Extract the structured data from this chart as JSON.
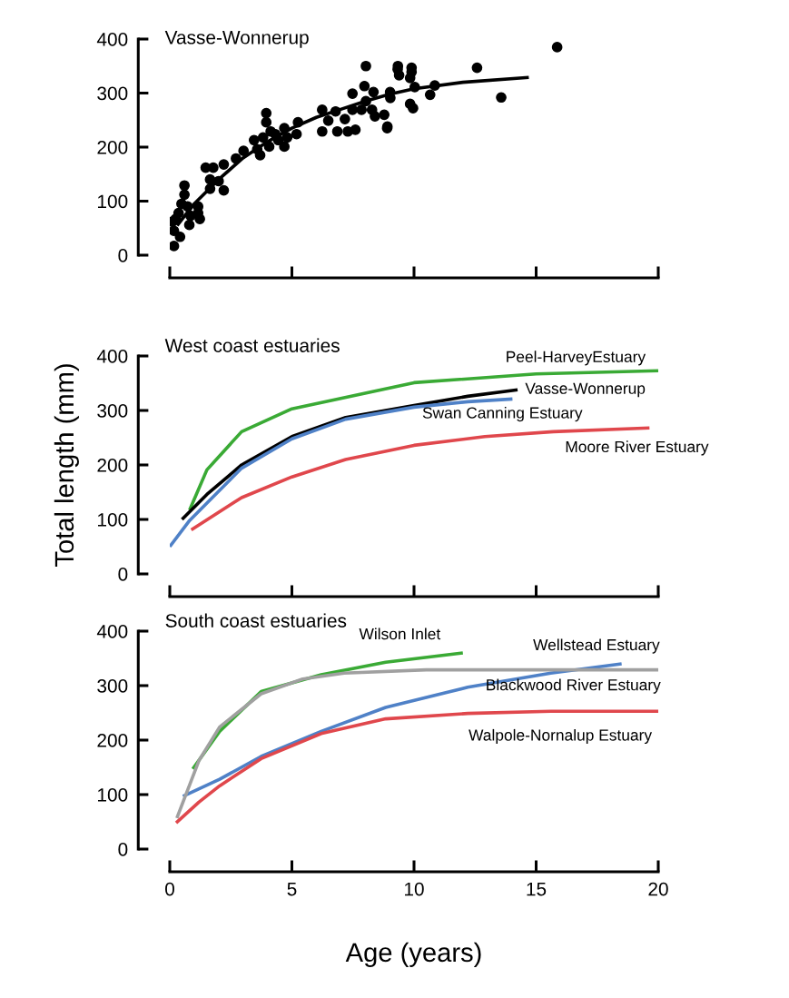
{
  "chart_data": [
    {
      "type": "scatter",
      "title": "Vasse-Wonnerup",
      "xlim": [
        0,
        20
      ],
      "xticks": [
        0,
        5,
        10,
        15,
        20
      ],
      "ylim": [
        0,
        400
      ],
      "yticks": [
        0,
        100,
        200,
        300,
        400
      ],
      "tick_labels": "y",
      "grid": false,
      "legend": false,
      "series": [
        {
          "type": "scatter",
          "color": "#000000",
          "marker": "circle",
          "x": [
            0.17,
            0.17,
            0.24,
            0.36,
            0.6,
            0.6,
            0.48,
            0.73,
            0.8,
            0.42,
            0.11,
            0.85,
            1.16,
            1.23,
            1.16,
            1.47,
            1.78,
            1.65,
            1.65,
            2.0,
            2.21,
            2.21,
            2.71,
            3.02,
            3.45,
            3.58,
            3.7,
            3.82,
            3.95,
            3.95,
            4.07,
            4.13,
            4.32,
            4.44,
            4.69,
            4.69,
            4.81,
            5.25,
            5.19,
            6.24,
            6.24,
            6.49,
            6.79,
            6.86,
            7.17,
            7.29,
            7.48,
            7.48,
            7.6,
            7.85,
            7.97,
            8.03,
            8.03,
            8.28,
            8.34,
            8.4,
            8.78,
            8.9,
            9.02,
            9.33,
            9.39,
            8.91,
            9.03,
            9.34,
            9.9,
            9.9,
            9.84,
            10.03,
            9.84,
            9.96,
            10.66,
            10.85,
            12.58,
            13.57,
            15.86
          ],
          "values": [
            17,
            45,
            67,
            78,
            129,
            112,
            95,
            90,
            56,
            34,
            62,
            73,
            90,
            67,
            78,
            162,
            162,
            140,
            123,
            137,
            168,
            120,
            179,
            193,
            213,
            196,
            185,
            218,
            263,
            246,
            201,
            229,
            224,
            213,
            235,
            201,
            218,
            246,
            224,
            269,
            229,
            249,
            266,
            229,
            252,
            229,
            299,
            269,
            232,
            269,
            313,
            350,
            285,
            269,
            302,
            257,
            260,
            235,
            302,
            344,
            333,
            238,
            291,
            350,
            347,
            339,
            328,
            311,
            280,
            272,
            297,
            314,
            347,
            292,
            385
          ]
        },
        {
          "type": "line",
          "color": "#000000",
          "line_style": "solid",
          "x": [
            0.3,
            1,
            2,
            3,
            4,
            5,
            6,
            7,
            8,
            9,
            10,
            12,
            14.7
          ],
          "values": [
            55,
            95,
            140,
            180,
            210,
            235,
            255,
            270,
            285,
            298,
            308,
            320,
            329
          ]
        }
      ]
    },
    {
      "type": "line",
      "title": "West coast estuaries",
      "ylabel": "Total length (mm)",
      "xlim": [
        0,
        20
      ],
      "xticks": [
        0,
        5,
        10,
        15,
        20
      ],
      "ylim": [
        0,
        400
      ],
      "yticks": [
        0,
        100,
        200,
        300,
        400
      ],
      "tick_labels": "y",
      "grid": false,
      "legend": false,
      "line_style": "solid",
      "series": [
        {
          "name": "Peel-HarveyEstuary",
          "color": "#3aaa35",
          "x": [
            0.81,
            1.52,
            2.94,
            5,
            10,
            15,
            20
          ],
          "values": [
            117,
            191,
            261,
            303,
            351,
            367,
            373
          ]
        },
        {
          "name": "Vasse-Wonnerup",
          "color": "#000000",
          "x": [
            0.5,
            1.52,
            2.94,
            5,
            7.2,
            10,
            12.2,
            14.24
          ],
          "values": [
            100,
            146,
            200,
            252,
            287,
            309,
            326,
            338
          ]
        },
        {
          "name": "Swan Canning Estuary",
          "color": "#4f81c7",
          "x": [
            0,
            0.81,
            1.52,
            2.94,
            5,
            7.2,
            10,
            12.2,
            14.03
          ],
          "values": [
            50,
            98,
            130,
            194,
            248,
            284,
            306,
            316,
            321
          ]
        },
        {
          "name": "Moore River Estuary",
          "color": "#e0474c",
          "x": [
            0.88,
            2.94,
            5,
            7.2,
            10,
            12.9,
            15.7,
            19.64
          ],
          "values": [
            81,
            140,
            178,
            210,
            236,
            252,
            261,
            268
          ]
        }
      ]
    },
    {
      "type": "line",
      "title": "South coast estuaries",
      "xlabel": "Age (years)",
      "xlim": [
        0,
        20
      ],
      "xticks": [
        0,
        5,
        10,
        15,
        20
      ],
      "ylim": [
        0,
        400
      ],
      "yticks": [
        0,
        100,
        200,
        300,
        400
      ],
      "grid": false,
      "legend": false,
      "line_style": "solid",
      "series": [
        {
          "name": "Wilson Inlet",
          "color": "#3aaa35",
          "x": [
            0.94,
            2.04,
            3.74,
            6.2,
            8.84,
            12.0
          ],
          "values": [
            147,
            216,
            289,
            320,
            343,
            360
          ]
        },
        {
          "name": "Wellstead Estuary",
          "color": "#4f81c7",
          "x": [
            0.54,
            2.04,
            3.74,
            6.2,
            8.84,
            12.2,
            15.6,
            18.5
          ],
          "values": [
            97,
            128,
            170,
            216,
            260,
            297,
            323,
            340
          ]
        },
        {
          "name": "Blackwood River Estuary",
          "color": "#a0a0a0",
          "x": [
            0.29,
            1.19,
            2.04,
            3.74,
            5.44,
            7.14,
            10.5,
            20
          ],
          "values": [
            57,
            162,
            224,
            285,
            312,
            323,
            329,
            329
          ]
        },
        {
          "name": "Walpole-Nornalup Estuary",
          "color": "#e0474c",
          "x": [
            0.26,
            1.19,
            2.04,
            3.74,
            6.2,
            8.84,
            12.2,
            15.6,
            20
          ],
          "values": [
            48,
            86,
            116,
            166,
            212,
            239,
            249,
            253,
            253
          ]
        }
      ]
    }
  ]
}
